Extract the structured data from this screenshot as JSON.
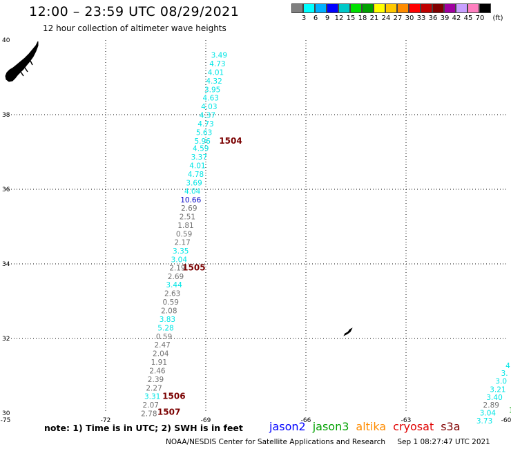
{
  "header": {
    "title": "12:00 – 23:59 UTC 08/29/2021",
    "subtitle": "12 hour collection of altimeter wave heights"
  },
  "colorbar": {
    "colors": [
      "#808080",
      "#00ffff",
      "#00b0ff",
      "#0000ff",
      "#00c8c8",
      "#00e000",
      "#00a000",
      "#ffff00",
      "#ffc800",
      "#ff8c00",
      "#ff0000",
      "#c00000",
      "#800000",
      "#a000a0",
      "#c8a0ff",
      "#ff80c0",
      "#000000"
    ],
    "ticks": [
      "3",
      "6",
      "9",
      "12",
      "15",
      "18",
      "21",
      "24",
      "27",
      "30",
      "33",
      "36",
      "39",
      "42",
      "45",
      "70"
    ],
    "unit": "(ft)"
  },
  "axes": {
    "x_ticks": [
      "-75",
      "-72",
      "-69",
      "-66",
      "-63",
      "-60"
    ],
    "y_ticks": [
      "40",
      "38",
      "36",
      "34",
      "32",
      "30"
    ],
    "xlim": [
      -75,
      -60
    ],
    "ylim": [
      30,
      40
    ]
  },
  "tracks": [
    {
      "color": "#00e5e5",
      "points": [
        {
          "lon": -68.6,
          "lat": 39.6,
          "v": "3.49"
        },
        {
          "lon": -68.65,
          "lat": 39.37,
          "v": "4.73"
        },
        {
          "lon": -68.7,
          "lat": 39.14,
          "v": "4.01"
        },
        {
          "lon": -68.75,
          "lat": 38.91,
          "v": "4.32"
        },
        {
          "lon": -68.8,
          "lat": 38.68,
          "v": "3.95"
        },
        {
          "lon": -68.85,
          "lat": 38.45,
          "v": "4.63"
        },
        {
          "lon": -68.9,
          "lat": 38.22,
          "v": "4.03"
        },
        {
          "lon": -68.95,
          "lat": 37.99,
          "v": "4.37"
        },
        {
          "lon": -69.0,
          "lat": 37.76,
          "v": "4.73"
        },
        {
          "lon": -69.05,
          "lat": 37.53,
          "v": "5.63"
        },
        {
          "lon": -69.1,
          "lat": 37.3,
          "v": "5.96"
        },
        {
          "lon": -69.15,
          "lat": 37.1,
          "v": "4.59"
        },
        {
          "lon": -69.2,
          "lat": 36.87,
          "v": "3.37"
        },
        {
          "lon": -69.25,
          "lat": 36.64,
          "v": "4.01"
        },
        {
          "lon": -69.3,
          "lat": 36.41,
          "v": "4.78"
        },
        {
          "lon": -69.35,
          "lat": 36.18,
          "v": "3.69"
        },
        {
          "lon": -69.4,
          "lat": 35.95,
          "v": "4.04"
        }
      ]
    },
    {
      "color": "#0000c8",
      "points": [
        {
          "lon": -69.45,
          "lat": 35.72,
          "v": "10.66"
        }
      ]
    },
    {
      "color": "#707070",
      "points": [
        {
          "lon": -69.5,
          "lat": 35.5,
          "v": "2.69"
        },
        {
          "lon": -69.55,
          "lat": 35.27,
          "v": "2.51"
        },
        {
          "lon": -69.6,
          "lat": 35.04,
          "v": "1.81"
        },
        {
          "lon": -69.65,
          "lat": 34.81,
          "v": "0.59"
        },
        {
          "lon": -69.7,
          "lat": 34.58,
          "v": "2.17"
        }
      ]
    },
    {
      "color": "#00e5e5",
      "points": [
        {
          "lon": -69.75,
          "lat": 34.35,
          "v": "3.35"
        },
        {
          "lon": -69.8,
          "lat": 34.12,
          "v": "3.04"
        }
      ]
    },
    {
      "color": "#707070",
      "points": [
        {
          "lon": -69.85,
          "lat": 33.9,
          "v": "2.19"
        },
        {
          "lon": -69.9,
          "lat": 33.67,
          "v": "2.69"
        }
      ]
    },
    {
      "color": "#00e5e5",
      "points": [
        {
          "lon": -69.95,
          "lat": 33.44,
          "v": "3.44"
        }
      ]
    },
    {
      "color": "#707070",
      "points": [
        {
          "lon": -70.0,
          "lat": 33.21,
          "v": "2.63"
        },
        {
          "lon": -70.05,
          "lat": 32.98,
          "v": "0.59"
        },
        {
          "lon": -70.1,
          "lat": 32.75,
          "v": "2.08"
        }
      ]
    },
    {
      "color": "#00e5e5",
      "points": [
        {
          "lon": -70.15,
          "lat": 32.52,
          "v": "3.83"
        },
        {
          "lon": -70.2,
          "lat": 32.29,
          "v": "5.28"
        }
      ]
    },
    {
      "color": "#707070",
      "points": [
        {
          "lon": -70.25,
          "lat": 32.06,
          "v": "0.59"
        },
        {
          "lon": -70.3,
          "lat": 31.83,
          "v": "2.47"
        },
        {
          "lon": -70.35,
          "lat": 31.6,
          "v": "2.04"
        },
        {
          "lon": -70.4,
          "lat": 31.37,
          "v": "1.91"
        },
        {
          "lon": -70.45,
          "lat": 31.14,
          "v": "2.46"
        },
        {
          "lon": -70.5,
          "lat": 30.91,
          "v": "2.39"
        },
        {
          "lon": -70.55,
          "lat": 30.68,
          "v": "2.27"
        }
      ]
    },
    {
      "color": "#00e5e5",
      "points": [
        {
          "lon": -70.6,
          "lat": 30.45,
          "v": "3.31"
        }
      ]
    },
    {
      "color": "#707070",
      "points": [
        {
          "lon": -70.65,
          "lat": 30.22,
          "v": "2.07"
        },
        {
          "lon": -70.7,
          "lat": 29.99,
          "v": "2.78"
        }
      ]
    },
    {
      "color": "#00e5e5",
      "points": [
        {
          "lon": -59.95,
          "lat": 31.28,
          "v": "4"
        },
        {
          "lon": -60.05,
          "lat": 31.07,
          "v": "3."
        },
        {
          "lon": -60.15,
          "lat": 30.86,
          "v": "3.0"
        },
        {
          "lon": -60.25,
          "lat": 30.64,
          "v": "3.21"
        },
        {
          "lon": -60.35,
          "lat": 30.43,
          "v": "3.40"
        }
      ]
    },
    {
      "color": "#707070",
      "points": [
        {
          "lon": -60.45,
          "lat": 30.22,
          "v": "2.89"
        }
      ]
    },
    {
      "color": "#00e5e5",
      "points": [
        {
          "lon": -60.55,
          "lat": 30.01,
          "v": "3.04"
        },
        {
          "lon": -60.65,
          "lat": 29.8,
          "v": "3.73"
        }
      ]
    },
    {
      "color": "#00a000",
      "points": [
        {
          "lon": -59.85,
          "lat": 30.08,
          "v": "1"
        }
      ]
    }
  ],
  "pass_labels": [
    {
      "text": "1504",
      "lon": -68.6,
      "lat": 37.3
    },
    {
      "text": "1505",
      "lon": -69.7,
      "lat": 33.9
    },
    {
      "text": "1506",
      "lon": -70.3,
      "lat": 30.45
    },
    {
      "text": "1507",
      "lon": -70.45,
      "lat": 30.03
    }
  ],
  "note": "note:  1) Time is in UTC;  2) SWH is in feet",
  "legend": [
    {
      "name": "jason2",
      "color": "#0000ff"
    },
    {
      "name": "jason3",
      "color": "#00a000"
    },
    {
      "name": "altika",
      "color": "#ff8c00"
    },
    {
      "name": "cryosat",
      "color": "#e00000"
    },
    {
      "name": "s3a",
      "color": "#800000"
    }
  ],
  "footer": {
    "credit": "NOAA/NESDIS Center for Satellite Applications and Research",
    "timestamp": "Sep  1 08:27:47 UTC 2021"
  }
}
